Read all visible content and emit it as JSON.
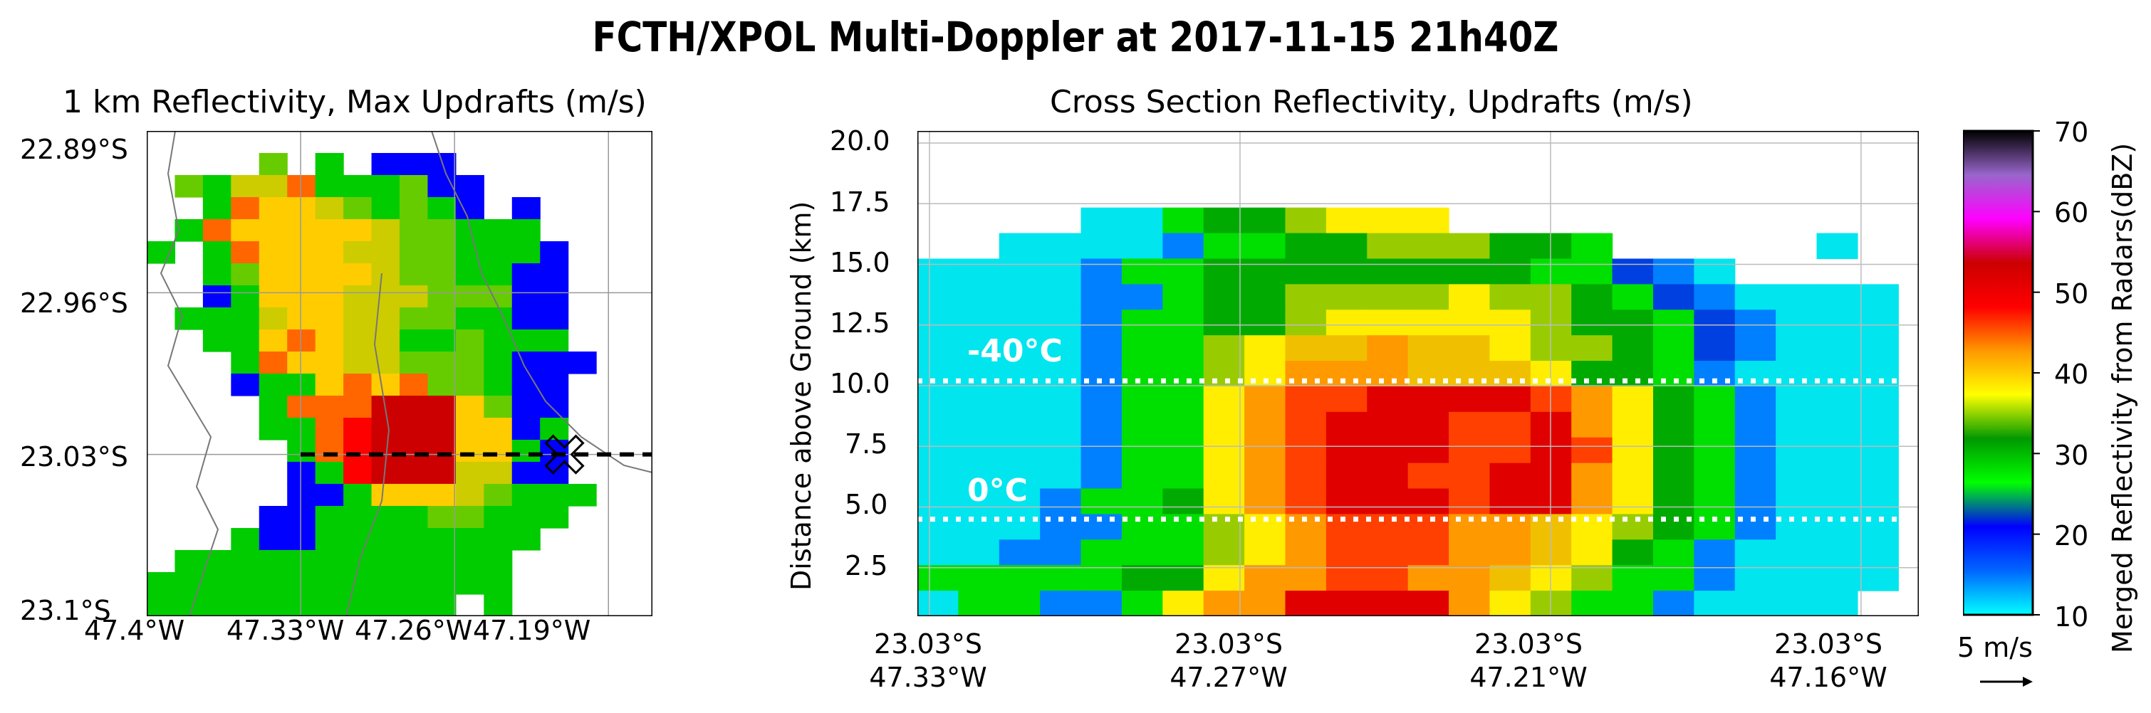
{
  "figure": {
    "title": "FCTH/XPOL Multi-Doppler at 2017-11-15 21h40Z"
  },
  "chart_data": [
    {
      "type": "heatmap",
      "title": "1 km Reflectivity, Max Updrafts (m/s)",
      "x_tick_labels": [
        "47.4°W",
        "47.33°W",
        "47.26°W",
        "47.19°W"
      ],
      "y_tick_labels": [
        "22.89°S",
        "22.96°S",
        "23.03°S",
        "23.1°S"
      ],
      "xlim": [
        -47.4,
        -47.17
      ],
      "ylim": [
        -23.1,
        -22.89
      ],
      "grid": true,
      "cross_section_line": {
        "lat": -23.03,
        "lon_range": [
          -47.33,
          -47.17
        ],
        "style": "dashed"
      },
      "max_updraft_marker": {
        "lat": -23.03,
        "lon": -47.21,
        "symbol": "X"
      },
      "rows": [
        "..................",
        "....7.8.999.......",
        ".78664888799......",
        "..8455678789.9....",
        ".8455555677888....",
        "8.8455566778889...",
        "..8755556778899...",
        "..9855566677799...",
        ".88865566778899...",
        "..8854566887888...",
        "...8455667778999..",
        "...988545477899...",
        "....84443335799...",
        "....88423335598...",
        ".....8423335589...",
        ".....9823336699...",
        ".....99855567888..",
        "....99888877888...",
        "...89988888888....",
        ".888888888888.....",
        "8888888888888.....",
        "88888888888.8....."
      ]
    },
    {
      "type": "heatmap",
      "title": "Cross Section Reflectivity, Updrafts (m/s)",
      "xlabel": "",
      "ylabel": "Distance above Ground (km)",
      "x_tick_labels": [
        [
          "23.03°S",
          "47.33°W"
        ],
        [
          "23.03°S",
          "47.27°W"
        ],
        [
          "23.03°S",
          "47.21°W"
        ],
        [
          "23.03°S",
          "47.16°W"
        ]
      ],
      "y_ticks": [
        2.5,
        5.0,
        7.5,
        10.0,
        12.5,
        15.0,
        17.5,
        20.0
      ],
      "y_tick_labels": [
        "2.5",
        "5.0",
        "7.5",
        "10.0",
        "12.5",
        "15.0",
        "17.5",
        "20.0"
      ],
      "ylim": [
        0.5,
        20.5
      ],
      "grid": true,
      "isotherms": [
        {
          "label": "-40°C",
          "height_km": 10.2
        },
        {
          "label": "0°C",
          "height_km": 4.5
        }
      ],
      "rows_top_to_bottom": [
        ".......................",
        ".......................",
        ".......................",
        "....CCRSSTUUU..........",
        "..CCCCDRRSSTTTSSR.....C.",
        "CCCCDRRSSSSSSSSRRQDC....",
        "CCCCDDRSSTTTTUTTSRQDCCCC",
        "CCCCDRRSSTUUUUUTSSRQDCCC",
        "CCCCDRRTUVVWVVUTTSRQDCCC",
        "CCCCDRRTUWWWVVVUSSRDCCCC",
        "CCCCDRRUWXXYYYYXWUSRDCCC",
        "CCCCDRRUWXYYYXXYWUSRDCCC",
        "CCCCDRRUWXYYYXXYXUSRDCCC",
        "CCCCDRRUWXYYXXYYWUSRDCCC",
        "CCCDRRSUWXYYYXYYWUSRDCCC",
        "CCCDDRRTUWXXXWWVUTSRDCCC",
        "CCDDRRRTUWXXXWWVUSRDCCCC",
        "RRRRRSSUWWXXWWVUTRRDCCCC",
        "CRRDDRUWWYYYYWUTRRDCCCC."
      ],
      "legend_note": "Each character encodes reflectivity (dBZ) bin; '.' = no data"
    }
  ],
  "colorbar": {
    "label": "Merged Reflectivity from Radars(dBZ)",
    "ticks": [
      "10",
      "20",
      "30",
      "40",
      "50",
      "60",
      "70"
    ],
    "range": [
      10,
      70
    ],
    "colors": [
      "#00ffff",
      "#0066ff",
      "#0000ff",
      "#00ff00",
      "#009900",
      "#ffff00",
      "#ff9900",
      "#ff0000",
      "#cc0000",
      "#ff00ff",
      "#9966cc",
      "#000000"
    ]
  },
  "quiver_key": {
    "label": "5 m/s"
  }
}
